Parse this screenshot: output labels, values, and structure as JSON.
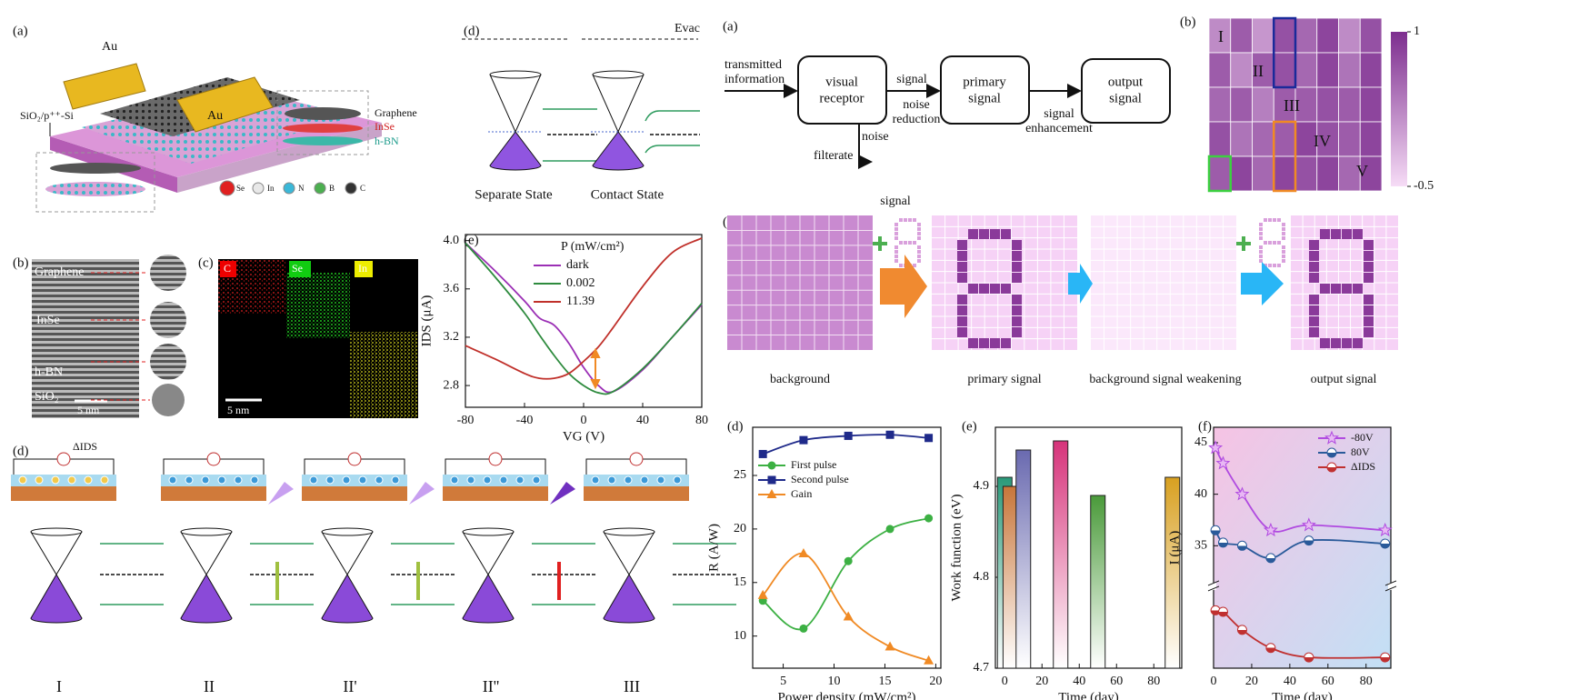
{
  "panel_labels": [
    "(a)",
    "(b)",
    "(c)",
    "(d)",
    "(e)",
    "(a)",
    "(b)",
    "(c)",
    "(d)",
    "(e)",
    "(f)",
    "(d)"
  ],
  "device": {
    "electrodes": [
      "Au",
      "Au"
    ],
    "layers": [
      "Graphene",
      "InSe",
      "h-BN"
    ],
    "substrate": "SiO₂/p⁺⁺-Si",
    "atoms": [
      "Se",
      "In",
      "N",
      "B",
      "C"
    ]
  },
  "tem": {
    "labels": [
      "Graphene",
      "InSe",
      "h-BN",
      "SiO₂"
    ],
    "scale_bar": "5 nm"
  },
  "eds": {
    "elements": [
      "C",
      "Se",
      "In"
    ],
    "scale_bar": "5 nm"
  },
  "band": {
    "vacuum_level": "Evac",
    "states": [
      "Separate State",
      "Contact State"
    ]
  },
  "mechanism": {
    "current_label": "ΔIDS",
    "stages": [
      "I",
      "II",
      "II'",
      "II''",
      "III"
    ]
  },
  "flow": {
    "input": [
      "transmitted",
      "information"
    ],
    "nodes": [
      [
        "visual",
        "receptor"
      ],
      [
        "primary",
        "signal"
      ],
      [
        "output",
        "signal"
      ]
    ],
    "edge_labels": [
      [
        "signal"
      ],
      [
        "noise",
        "reduction"
      ],
      [
        "signal",
        "enhancement"
      ]
    ],
    "branch": [
      "noise",
      "filterate"
    ]
  },
  "heatmap": {
    "regions": [
      "I",
      "II",
      "III",
      "IV",
      "V"
    ],
    "colorbar_ticks": [
      1,
      -0.5
    ],
    "values": [
      [
        0.2,
        0.6,
        0.1,
        0.7,
        0.5,
        0.8,
        0.2,
        0.7
      ],
      [
        0.6,
        0.2,
        0.6,
        0.7,
        0.5,
        0.8,
        0.4,
        0.8
      ],
      [
        0.5,
        0.6,
        0.3,
        0.6,
        0.6,
        0.7,
        0.6,
        0.8
      ],
      [
        0.7,
        0.4,
        0.5,
        0.6,
        0.8,
        0.7,
        0.6,
        0.8
      ],
      [
        0.6,
        0.8,
        0.5,
        0.8,
        0.7,
        0.8,
        0.5,
        0.8
      ]
    ]
  },
  "pixel_demo": {
    "add_label": "signal",
    "captions": [
      "background",
      "primary signal",
      "background signal weakening",
      "output signal"
    ]
  },
  "chart_data": [
    {
      "type": "line",
      "smooth": true,
      "x": [
        -80,
        -60,
        -40,
        -30,
        -20,
        -10,
        0,
        10,
        20,
        40,
        60,
        80
      ],
      "series": [
        {
          "name": "dark",
          "color": "#9b2fb5",
          "values": [
            3.98,
            3.75,
            3.5,
            3.36,
            3.3,
            3.15,
            2.95,
            2.8,
            2.75,
            2.93,
            3.2,
            3.47
          ]
        },
        {
          "name": "0.002",
          "color": "#2e8b3e",
          "values": [
            3.98,
            3.7,
            3.4,
            3.22,
            3.05,
            2.9,
            2.8,
            2.74,
            2.75,
            2.94,
            3.2,
            3.48
          ]
        },
        {
          "name": "11.39",
          "color": "#c0302a",
          "values": [
            3.13,
            3.02,
            2.9,
            2.86,
            2.86,
            2.9,
            3.0,
            3.12,
            3.28,
            3.62,
            3.9,
            4.02
          ]
        }
      ],
      "xlim": [
        -80,
        80
      ],
      "ylim": [
        2.62,
        4.05
      ],
      "xticks": [
        -80,
        -40,
        0,
        40,
        80
      ],
      "yticks": [
        2.8,
        3.2,
        3.6,
        {
          "value": 4,
          "label": "4.0"
        }
      ],
      "xlabel": "VG (V)",
      "ylabel": "IDS (μA)",
      "legend_title": "P (mW/cm²)",
      "legend": "upper center"
    },
    {
      "type": "line",
      "smooth": true,
      "x": [
        3,
        7,
        11.4,
        15.5,
        19.3
      ],
      "series": [
        {
          "name": "First pulse",
          "color": "#3cb043",
          "marker": "circle",
          "values": [
            13.3,
            10.7,
            17,
            20,
            21
          ]
        },
        {
          "name": "Second pulse",
          "color": "#1f2a8a",
          "marker": "square",
          "values": [
            27,
            28.3,
            28.7,
            28.8,
            28.5
          ]
        },
        {
          "name": "Gain",
          "color": "#f08a24",
          "marker": "triangle",
          "values": [
            13.8,
            17.7,
            11.8,
            9,
            7.7
          ]
        }
      ],
      "xlim": [
        2,
        20.5
      ],
      "ylim": [
        7,
        29.5
      ],
      "xticks": [
        5,
        10,
        15,
        20
      ],
      "yticks": [
        10,
        15,
        20,
        25
      ],
      "xlabel": "Power density (mW/cm²)",
      "ylabel": "R (A/W)",
      "legend": "upper left"
    },
    {
      "type": "bar",
      "x": [
        0,
        3,
        10,
        30,
        50,
        90
      ],
      "values": [
        4.91,
        4.9,
        4.94,
        4.95,
        4.89,
        4.91
      ],
      "colors": [
        "#2a9a7a",
        "#c8763a",
        "#6a6ab0",
        "#d6337a",
        "#4a9a3a",
        "#d8a020"
      ],
      "xlim": [
        -5,
        95
      ],
      "ylim": [
        4.7,
        4.965
      ],
      "xticks": [
        0,
        20,
        40,
        60,
        80
      ],
      "yticks": [
        4.7,
        4.8,
        4.9
      ],
      "xlabel": "Time (day)",
      "ylabel": "Work function (eV)"
    },
    {
      "type": "line",
      "smooth": true,
      "x": [
        1,
        5,
        15,
        30,
        50,
        90
      ],
      "series": [
        {
          "name": "-80V",
          "color": "#b04ae0",
          "marker": "star",
          "values": [
            44.5,
            43,
            40,
            36.5,
            37,
            36.5
          ]
        },
        {
          "name": "80V",
          "color": "#2a5a9a",
          "marker": "half",
          "values": [
            36.5,
            35.3,
            35,
            33.8,
            35.5,
            35.2
          ]
        },
        {
          "name": "ΔIDS",
          "color": "#c03030",
          "marker": "half",
          "axis": "y2",
          "values": [
            8,
            7.8,
            5.3,
            2.8,
            1.5,
            1.5
          ]
        }
      ],
      "xlim": [
        0,
        93
      ],
      "ylim": [
        32,
        46.5
      ],
      "y2lim": [
        0,
        10
      ],
      "xticks": [
        0,
        20,
        40,
        60,
        80
      ],
      "yticks": [
        35,
        40,
        45
      ],
      "xlabel": "Time (day)",
      "ylabel": "I (μA)",
      "legend": "upper right",
      "background_colors": [
        "#f6c3e4",
        "#c2e0f5"
      ]
    }
  ]
}
